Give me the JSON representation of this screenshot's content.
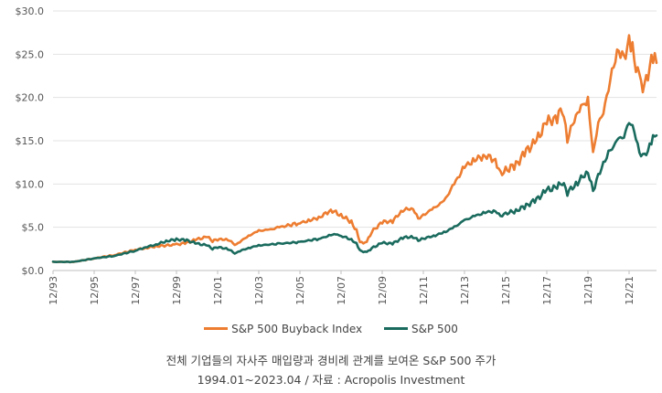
{
  "chart_data": {
    "type": "line",
    "title": "",
    "xlabel": "",
    "ylabel": "",
    "x_ticks": [
      "12/93",
      "12/95",
      "12/97",
      "12/99",
      "12/01",
      "12/03",
      "12/05",
      "12/07",
      "12/09",
      "12/11",
      "12/13",
      "12/15",
      "12/17",
      "12/19",
      "12/21"
    ],
    "y_ticks": [
      "$0.0",
      "$5.0",
      "$10.0",
      "$15.0",
      "$20.0",
      "$25.0",
      "$30.0"
    ],
    "ylim": [
      0,
      30
    ],
    "xlim": [
      "1993-12",
      "2023-04"
    ],
    "grid": "horizontal",
    "legend_position": "bottom",
    "series": [
      {
        "name": "S&P 500 Buyback Index",
        "color": "#ED7D31",
        "points": [
          [
            "1993-12",
            1.0
          ],
          [
            "1994-12",
            1.0
          ],
          [
            "1995-12",
            1.4
          ],
          [
            "1996-12",
            1.8
          ],
          [
            "1997-12",
            2.4
          ],
          [
            "1998-06",
            2.6
          ],
          [
            "1998-12",
            2.8
          ],
          [
            "1999-12",
            3.0
          ],
          [
            "2000-06",
            3.2
          ],
          [
            "2000-12",
            3.6
          ],
          [
            "2001-06",
            3.9
          ],
          [
            "2001-09",
            3.4
          ],
          [
            "2001-12",
            3.6
          ],
          [
            "2002-06",
            3.6
          ],
          [
            "2002-10",
            3.0
          ],
          [
            "2002-12",
            3.2
          ],
          [
            "2003-06",
            4.0
          ],
          [
            "2003-12",
            4.6
          ],
          [
            "2004-06",
            4.7
          ],
          [
            "2004-12",
            5.0
          ],
          [
            "2005-12",
            5.5
          ],
          [
            "2006-06",
            5.8
          ],
          [
            "2006-12",
            6.2
          ],
          [
            "2007-06",
            7.0
          ],
          [
            "2007-12",
            6.4
          ],
          [
            "2008-06",
            5.6
          ],
          [
            "2008-09",
            4.6
          ],
          [
            "2008-11",
            3.2
          ],
          [
            "2009-03",
            3.3
          ],
          [
            "2009-06",
            4.5
          ],
          [
            "2009-12",
            5.6
          ],
          [
            "2010-06",
            5.7
          ],
          [
            "2010-12",
            7.0
          ],
          [
            "2011-06",
            7.2
          ],
          [
            "2011-09",
            6.0
          ],
          [
            "2011-12",
            6.4
          ],
          [
            "2012-06",
            7.2
          ],
          [
            "2012-12",
            8.0
          ],
          [
            "2013-06",
            10.0
          ],
          [
            "2013-12",
            12.0
          ],
          [
            "2014-06",
            12.8
          ],
          [
            "2014-12",
            13.3
          ],
          [
            "2015-06",
            12.8
          ],
          [
            "2015-09",
            11.2
          ],
          [
            "2015-12",
            11.6
          ],
          [
            "2016-06",
            12.2
          ],
          [
            "2016-12",
            13.8
          ],
          [
            "2017-06",
            15.0
          ],
          [
            "2017-12",
            17.2
          ],
          [
            "2018-06",
            17.6
          ],
          [
            "2018-09",
            18.8
          ],
          [
            "2018-12",
            15.2
          ],
          [
            "2019-06",
            18.5
          ],
          [
            "2019-10",
            19.2
          ],
          [
            "2019-12",
            19.8
          ],
          [
            "2020-03",
            13.5
          ],
          [
            "2020-06",
            17.0
          ],
          [
            "2020-09",
            18.2
          ],
          [
            "2020-12",
            21.0
          ],
          [
            "2021-03",
            23.8
          ],
          [
            "2021-06",
            25.5
          ],
          [
            "2021-09",
            24.6
          ],
          [
            "2021-12",
            26.5
          ],
          [
            "2022-02",
            25.5
          ],
          [
            "2022-06",
            22.0
          ],
          [
            "2022-09",
            21.2
          ],
          [
            "2022-12",
            23.5
          ],
          [
            "2023-02",
            24.5
          ],
          [
            "2023-04",
            24.0
          ]
        ]
      },
      {
        "name": "S&P 500",
        "color": "#1A6B5E",
        "points": [
          [
            "1993-12",
            1.0
          ],
          [
            "1994-12",
            1.0
          ],
          [
            "1995-12",
            1.4
          ],
          [
            "1996-12",
            1.7
          ],
          [
            "1997-12",
            2.3
          ],
          [
            "1998-06",
            2.7
          ],
          [
            "1998-12",
            3.0
          ],
          [
            "1999-06",
            3.4
          ],
          [
            "1999-12",
            3.6
          ],
          [
            "2000-06",
            3.5
          ],
          [
            "2000-12",
            3.1
          ],
          [
            "2001-06",
            2.9
          ],
          [
            "2001-09",
            2.5
          ],
          [
            "2001-12",
            2.7
          ],
          [
            "2002-06",
            2.5
          ],
          [
            "2002-10",
            2.0
          ],
          [
            "2002-12",
            2.2
          ],
          [
            "2003-06",
            2.6
          ],
          [
            "2003-12",
            2.9
          ],
          [
            "2004-12",
            3.1
          ],
          [
            "2005-12",
            3.3
          ],
          [
            "2006-12",
            3.7
          ],
          [
            "2007-06",
            4.1
          ],
          [
            "2007-10",
            4.2
          ],
          [
            "2007-12",
            4.0
          ],
          [
            "2008-06",
            3.6
          ],
          [
            "2008-09",
            3.1
          ],
          [
            "2008-11",
            2.3
          ],
          [
            "2009-03",
            2.1
          ],
          [
            "2009-06",
            2.6
          ],
          [
            "2009-12",
            3.2
          ],
          [
            "2010-06",
            3.1
          ],
          [
            "2010-12",
            3.8
          ],
          [
            "2011-06",
            3.9
          ],
          [
            "2011-09",
            3.5
          ],
          [
            "2011-12",
            3.7
          ],
          [
            "2012-06",
            4.0
          ],
          [
            "2012-12",
            4.4
          ],
          [
            "2013-06",
            5.0
          ],
          [
            "2013-12",
            5.8
          ],
          [
            "2014-06",
            6.3
          ],
          [
            "2014-12",
            6.7
          ],
          [
            "2015-06",
            6.9
          ],
          [
            "2015-09",
            6.3
          ],
          [
            "2015-12",
            6.6
          ],
          [
            "2016-06",
            6.9
          ],
          [
            "2016-12",
            7.5
          ],
          [
            "2017-06",
            8.2
          ],
          [
            "2017-12",
            9.3
          ],
          [
            "2018-06",
            9.6
          ],
          [
            "2018-09",
            10.2
          ],
          [
            "2018-12",
            9.0
          ],
          [
            "2019-06",
            10.2
          ],
          [
            "2019-12",
            11.5
          ],
          [
            "2020-03",
            9.2
          ],
          [
            "2020-06",
            11.0
          ],
          [
            "2020-09",
            12.3
          ],
          [
            "2020-12",
            13.6
          ],
          [
            "2021-06",
            15.2
          ],
          [
            "2021-09",
            15.4
          ],
          [
            "2021-12",
            17.2
          ],
          [
            "2022-03",
            16.2
          ],
          [
            "2022-06",
            13.6
          ],
          [
            "2022-09",
            13.3
          ],
          [
            "2022-12",
            14.3
          ],
          [
            "2023-02",
            15.2
          ],
          [
            "2023-04",
            15.6
          ]
        ]
      }
    ]
  },
  "caption": {
    "line1": "전체 기업들의 자사주 매입량과 경비례 관계를 보여온 S&P 500 주가",
    "line2": "1994.01~2023.04 / 자료 : Acropolis Investment"
  }
}
